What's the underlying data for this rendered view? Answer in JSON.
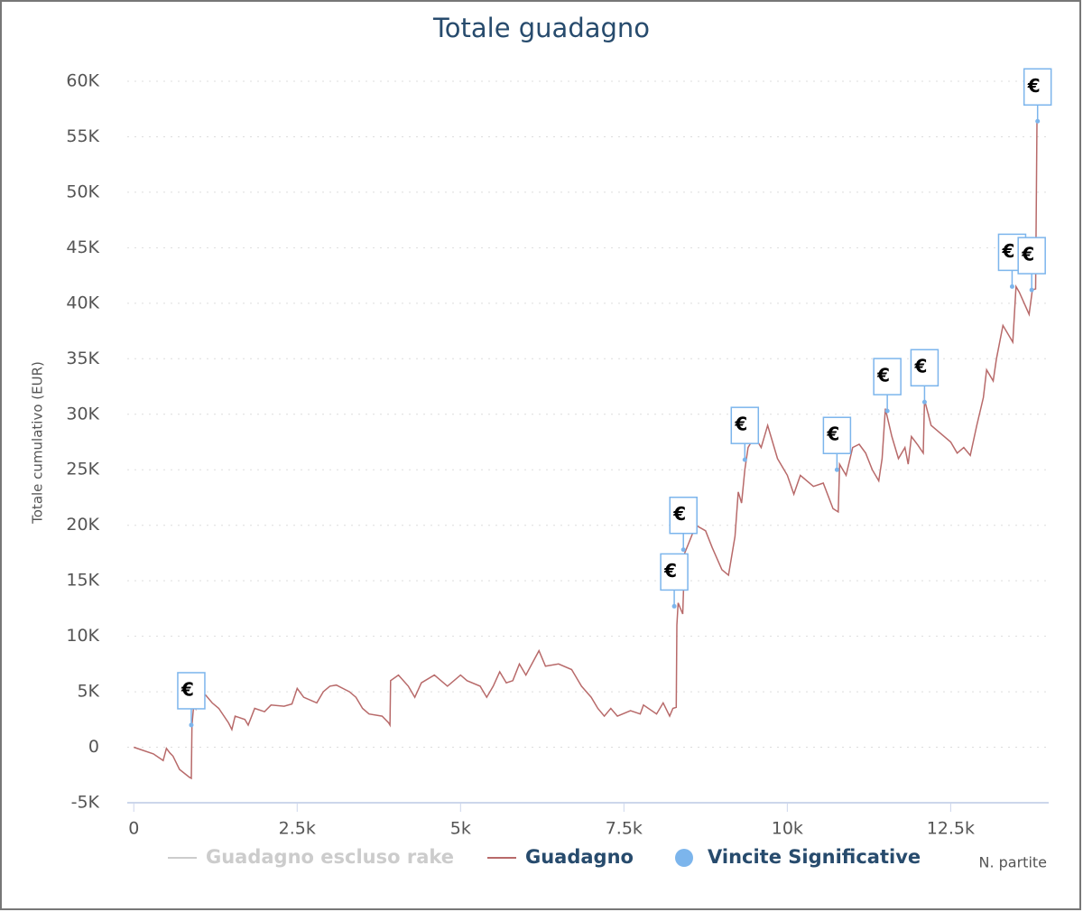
{
  "chart_data": {
    "type": "line",
    "title": "Totale guadagno",
    "y_axis_title": "Totale cumulativo (EUR)",
    "x_axis_title": "N. partite",
    "xlim": [
      -100,
      14000
    ],
    "xticks": [
      0,
      {
        "value": 2500,
        "label": "2.5k"
      },
      {
        "value": 5000,
        "label": "5k"
      },
      {
        "value": 7500,
        "label": "7.5k"
      },
      {
        "value": 10000,
        "label": "10k"
      },
      {
        "value": 12500,
        "label": "12.5k"
      }
    ],
    "ylim": [
      -5000,
      60000
    ],
    "yticks": [
      {
        "value": -5000,
        "label": "-5K"
      },
      0,
      {
        "value": 5000,
        "label": "5K"
      },
      {
        "value": 10000,
        "label": "10K"
      },
      {
        "value": 15000,
        "label": "15K"
      },
      {
        "value": 20000,
        "label": "20K"
      },
      {
        "value": 25000,
        "label": "25K"
      },
      {
        "value": 30000,
        "label": "30K"
      },
      {
        "value": 35000,
        "label": "35K"
      },
      {
        "value": 40000,
        "label": "40K"
      },
      {
        "value": 45000,
        "label": "45K"
      },
      {
        "value": 50000,
        "label": "50K"
      },
      {
        "value": 55000,
        "label": "55K"
      },
      {
        "value": 60000,
        "label": "60K"
      }
    ],
    "grid": true,
    "hidden_series": [
      {
        "name": "Guadagno escluso rake",
        "color": "#cccccc"
      }
    ],
    "series": [
      {
        "name": "Guadagno",
        "color": "#b86a6a",
        "x": [
          0,
          100,
          300,
          450,
          500,
          550,
          600,
          700,
          850,
          880,
          890,
          920,
          950,
          1000,
          1100,
          1200,
          1300,
          1450,
          1500,
          1550,
          1700,
          1750,
          1850,
          2000,
          2100,
          2300,
          2420,
          2500,
          2600,
          2800,
          2900,
          3000,
          3100,
          3300,
          3400,
          3500,
          3600,
          3800,
          3900,
          3920,
          3930,
          4050,
          4200,
          4300,
          4400,
          4600,
          4800,
          5000,
          5100,
          5300,
          5400,
          5500,
          5600,
          5700,
          5800,
          5900,
          6000,
          6200,
          6300,
          6500,
          6700,
          6850,
          7000,
          7100,
          7200,
          7300,
          7400,
          7600,
          7750,
          7800,
          8000,
          8100,
          8200,
          8250,
          8300,
          8310,
          8330,
          8400,
          8430,
          8500,
          8600,
          8750,
          8850,
          9000,
          9100,
          9200,
          9250,
          9300,
          9350,
          9400,
          9500,
          9600,
          9700,
          9850,
          10000,
          10100,
          10200,
          10400,
          10550,
          10700,
          10780,
          10800,
          10900,
          11000,
          11100,
          11200,
          11300,
          11400,
          11450,
          11500,
          11600,
          11700,
          11800,
          11850,
          11900,
          12000,
          12080,
          12100,
          12200,
          12300,
          12500,
          12600,
          12700,
          12800,
          12900,
          13000,
          13050,
          13150,
          13200,
          13300,
          13450,
          13500,
          13550,
          13700,
          13750,
          13800,
          13820
        ],
        "values": [
          0,
          -200,
          -600,
          -1200,
          -100,
          -500,
          -800,
          -2000,
          -2700,
          -2800,
          2000,
          4000,
          3500,
          5000,
          4700,
          4000,
          3500,
          2200,
          1600,
          2800,
          2500,
          2000,
          3500,
          3200,
          3800,
          3700,
          3900,
          5300,
          4500,
          4000,
          5000,
          5500,
          5600,
          5000,
          4500,
          3500,
          3000,
          2800,
          2200,
          2000,
          6000,
          6500,
          5500,
          4500,
          5800,
          6500,
          5500,
          6500,
          6000,
          5500,
          4500,
          5500,
          6800,
          5800,
          6000,
          7500,
          6500,
          8700,
          7300,
          7500,
          7000,
          5500,
          4500,
          3500,
          2800,
          3500,
          2800,
          3300,
          3000,
          3800,
          3000,
          4000,
          2800,
          3500,
          3600,
          11000,
          13000,
          12000,
          17500,
          18500,
          20000,
          19500,
          18000,
          16000,
          15500,
          19000,
          23000,
          22000,
          25000,
          27000,
          28000,
          27000,
          29000,
          26000,
          24500,
          22800,
          24500,
          23500,
          23800,
          21500,
          21200,
          25500,
          24500,
          27000,
          27300,
          26500,
          25000,
          24000,
          26000,
          30500,
          28000,
          26000,
          27000,
          25500,
          28000,
          27200,
          26500,
          31300,
          29000,
          28500,
          27500,
          26500,
          27000,
          26300,
          29000,
          31500,
          34000,
          33000,
          35000,
          38000,
          36500,
          41500,
          41000,
          39000,
          41200,
          41300,
          56400
        ]
      },
      {
        "name": "Vincite Significative",
        "color": "#7cb5ec",
        "flag_text": "€",
        "x": [
          880,
          8270,
          8410,
          9350,
          10760,
          11530,
          12100,
          13440,
          13740,
          13830
        ],
        "values": [
          2000,
          12700,
          17800,
          25900,
          25000,
          30300,
          31100,
          41500,
          41200,
          56400
        ]
      }
    ]
  }
}
